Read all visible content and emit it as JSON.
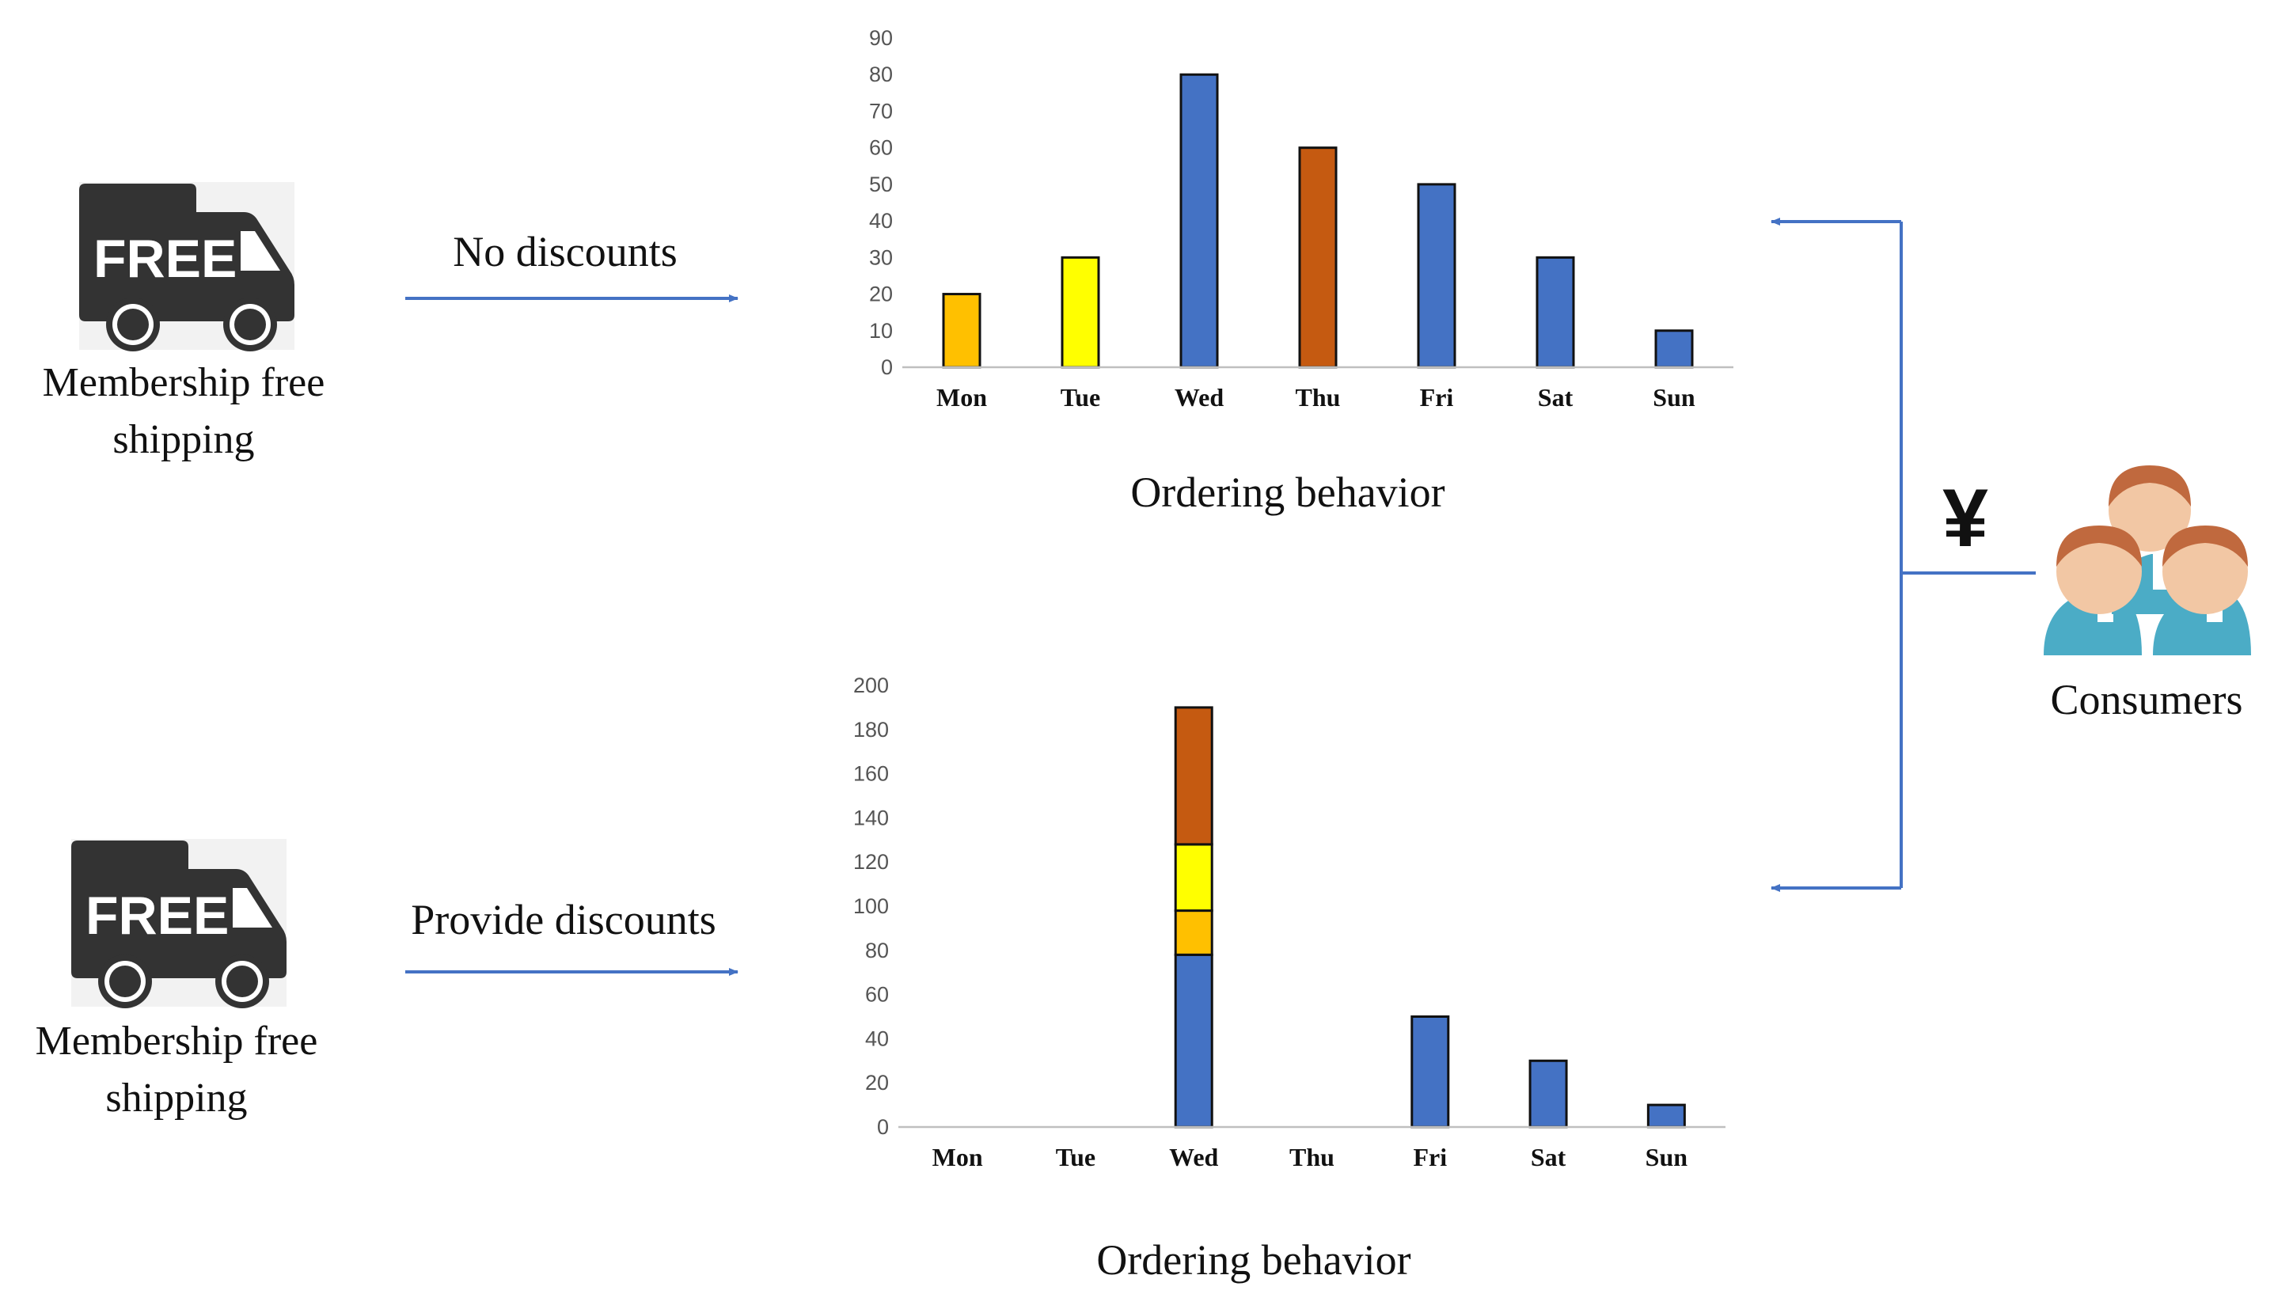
{
  "panels": [
    {
      "icon_label": "FREE",
      "caption_line1": "Membership free",
      "caption_line2": "shipping",
      "arrow_label": "No discounts"
    },
    {
      "icon_label": "FREE",
      "caption_line1": "Membership free",
      "caption_line2": "shipping",
      "arrow_label": "Provide discounts"
    }
  ],
  "consumers": {
    "label": "Consumers",
    "currency_symbol": "¥",
    "icon": "people-group-icon"
  },
  "colors": {
    "blue": "#4472c4",
    "orange_yellow": "#ffc000",
    "yellow": "#ffff00",
    "rust": "#c55a11",
    "arrow": "#4472c4",
    "truck": "#333333"
  },
  "chart_data": [
    {
      "type": "bar",
      "categories": [
        "Mon",
        "Tue",
        "Wed",
        "Thu",
        "Fri",
        "Sat",
        "Sun"
      ],
      "values": [
        20,
        30,
        80,
        60,
        50,
        30,
        10
      ],
      "bar_colors": [
        "#ffc000",
        "#ffff00",
        "#4472c4",
        "#c55a11",
        "#4472c4",
        "#4472c4",
        "#4472c4"
      ],
      "xlabel": "Ordering behavior",
      "ylim": [
        0,
        90
      ],
      "yticks": [
        0,
        10,
        20,
        30,
        40,
        50,
        60,
        70,
        80,
        90
      ],
      "grid": false
    },
    {
      "type": "bar",
      "stacked": true,
      "categories": [
        "Mon",
        "Tue",
        "Wed",
        "Thu",
        "Fri",
        "Sat",
        "Sun"
      ],
      "segments": [
        {
          "color": "#4472c4",
          "values": [
            0,
            0,
            78,
            0,
            50,
            30,
            10
          ]
        },
        {
          "color": "#ffc000",
          "values": [
            0,
            0,
            20,
            0,
            0,
            0,
            0
          ]
        },
        {
          "color": "#ffff00",
          "values": [
            0,
            0,
            30,
            0,
            0,
            0,
            0
          ]
        },
        {
          "color": "#c55a11",
          "values": [
            0,
            0,
            62,
            0,
            0,
            0,
            0
          ]
        }
      ],
      "xlabel": "Ordering behavior",
      "ylim": [
        0,
        200
      ],
      "yticks": [
        0,
        20,
        40,
        60,
        80,
        100,
        120,
        140,
        160,
        180,
        200
      ],
      "grid": false
    }
  ]
}
